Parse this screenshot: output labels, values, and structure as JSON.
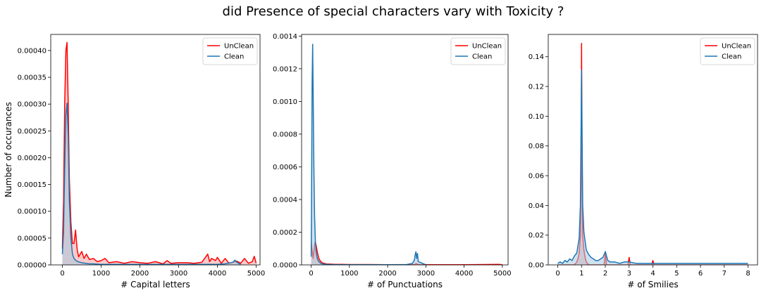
{
  "suptitle": "did Presence of special characters vary with Toxicity ?",
  "colors": {
    "unclean": "#ff0000",
    "unclean_fill": "#f4a0a0",
    "clean": "#1f77b4",
    "clean_fill": "#a8c8e0"
  },
  "chart_data": [
    {
      "type": "area",
      "xlabel": "# Capital letters",
      "ylabel": "Number of occurances",
      "xlim": [
        -300,
        5100
      ],
      "ylim": [
        0,
        0.00043
      ],
      "xticks": [
        0,
        1000,
        2000,
        3000,
        4000,
        5000
      ],
      "xtick_labels": [
        "0",
        "1000",
        "2000",
        "3000",
        "4000",
        "5000"
      ],
      "yticks": [
        0,
        5e-05,
        0.0001,
        0.00015,
        0.0002,
        0.00025,
        0.0003,
        0.00035,
        0.0004
      ],
      "ytick_labels": [
        "0.00000",
        "0.00005",
        "0.00010",
        "0.00015",
        "0.00020",
        "0.00025",
        "0.00030",
        "0.00035",
        "0.00040"
      ],
      "legend": "top-right",
      "series": [
        {
          "name": "UnClean",
          "color": "#ff0000",
          "x": [
            0,
            30,
            60,
            90,
            120,
            150,
            180,
            220,
            260,
            300,
            340,
            380,
            420,
            460,
            500,
            560,
            620,
            700,
            800,
            900,
            1000,
            1100,
            1200,
            1400,
            1600,
            1800,
            2000,
            2200,
            2400,
            2600,
            2700,
            2800,
            3000,
            3200,
            3400,
            3600,
            3750,
            3800,
            3850,
            3950,
            4000,
            4100,
            4200,
            4300,
            4400,
            4500,
            4600,
            4700,
            4800,
            4900,
            4950,
            5000
          ],
          "y": [
            3e-05,
            0.00012,
            0.0003,
            0.0004,
            0.000415,
            0.0003,
            0.00016,
            8e-05,
            4e-05,
            4e-05,
            6.5e-05,
            3e-05,
            1.5e-05,
            2e-05,
            2.5e-05,
            1.2e-05,
            2e-05,
            1e-05,
            1.2e-05,
            6e-06,
            8e-06,
            1.2e-05,
            4e-06,
            6e-06,
            3e-06,
            6e-06,
            4e-06,
            3e-06,
            6e-06,
            2e-06,
            8e-06,
            3e-06,
            4e-06,
            4e-06,
            3e-06,
            5e-06,
            2e-05,
            6e-06,
            1.2e-05,
            8e-06,
            1.4e-05,
            3e-06,
            1.2e-05,
            3e-06,
            5e-06,
            7e-06,
            3e-06,
            1.2e-05,
            3e-06,
            6e-06,
            1.6e-05,
            3e-06
          ]
        },
        {
          "name": "Clean",
          "color": "#1f77b4",
          "x": [
            0,
            30,
            60,
            90,
            120,
            150,
            180,
            220,
            260,
            300,
            350,
            400,
            450,
            500,
            600,
            700,
            800,
            1000,
            1500,
            2000,
            2500,
            3000,
            3500,
            4000,
            4200,
            4400,
            4450,
            4500,
            4600
          ],
          "y": [
            2e-05,
            6e-05,
            0.00018,
            0.00028,
            0.000302,
            0.00024,
            0.00012,
            5e-05,
            2e-05,
            1.2e-05,
            8e-06,
            6e-06,
            5e-06,
            4e-06,
            3e-06,
            2e-06,
            2e-06,
            1e-06,
            1e-06,
            1e-06,
            1e-06,
            1e-06,
            1e-06,
            1e-06,
            2e-06,
            5e-06,
            9e-06,
            5e-06,
            1e-06
          ]
        }
      ]
    },
    {
      "type": "area",
      "xlabel": "# of Punctuations",
      "xlim": [
        -250,
        5150
      ],
      "ylim": [
        0,
        0.00141
      ],
      "xticks": [
        0,
        1000,
        2000,
        3000,
        4000,
        5000
      ],
      "xtick_labels": [
        "0",
        "1000",
        "2000",
        "3000",
        "4000",
        "5000"
      ],
      "yticks": [
        0,
        0.0002,
        0.0004,
        0.0006,
        0.0008,
        0.001,
        0.0012,
        0.0014
      ],
      "ytick_labels": [
        "0.0000",
        "0.0002",
        "0.0004",
        "0.0006",
        "0.0008",
        "0.0010",
        "0.0012",
        "0.0014"
      ],
      "legend": "top-right",
      "series": [
        {
          "name": "UnClean",
          "color": "#ff0000",
          "x": [
            0,
            20,
            50,
            80,
            100,
            130,
            160,
            200,
            250,
            300,
            400,
            600,
            800,
            1000,
            1500,
            2000,
            2500,
            2700,
            2750,
            2800,
            3000,
            3500,
            4000,
            4500,
            4900,
            5000
          ],
          "y": [
            0.00015,
            0.0001,
            4e-05,
            0.0001,
            0.00014,
            0.00012,
            8e-05,
            4e-05,
            2e-05,
            1.2e-05,
            6e-06,
            4e-06,
            3e-06,
            2e-06,
            2e-06,
            1e-06,
            1e-06,
            2e-06,
            8e-06,
            2e-06,
            1e-06,
            1e-06,
            1e-06,
            2e-06,
            3e-06,
            1e-06
          ]
        },
        {
          "name": "Clean",
          "color": "#1f77b4",
          "x": [
            0,
            10,
            25,
            40,
            55,
            70,
            90,
            110,
            130,
            160,
            200,
            250,
            300,
            400,
            500,
            700,
            1000,
            1500,
            2000,
            2500,
            2650,
            2700,
            2720,
            2740,
            2760,
            2780,
            2800,
            3000
          ],
          "y": [
            5e-05,
            0.0004,
            0.0011,
            0.00135,
            0.001,
            0.0006,
            0.0003,
            0.00015,
            8e-05,
            4e-05,
            2e-05,
            1e-05,
            6e-06,
            3e-06,
            2e-06,
            1e-06,
            1e-06,
            1e-06,
            1e-06,
            2e-06,
            1e-05,
            3e-05,
            6e-05,
            8e-05,
            4e-05,
            7e-05,
            2e-05,
            1e-06
          ]
        }
      ]
    },
    {
      "type": "area",
      "xlabel": "# of Smilies",
      "xlim": [
        -0.4,
        8.4
      ],
      "ylim": [
        0,
        0.155
      ],
      "xticks": [
        0,
        1,
        2,
        3,
        4,
        5,
        6,
        7,
        8
      ],
      "xtick_labels": [
        "0",
        "1",
        "2",
        "3",
        "4",
        "5",
        "6",
        "7",
        "8"
      ],
      "yticks": [
        0,
        0.02,
        0.04,
        0.06,
        0.08,
        0.1,
        0.12,
        0.14
      ],
      "ytick_labels": [
        "0.00",
        "0.02",
        "0.04",
        "0.06",
        "0.08",
        "0.10",
        "0.12",
        "0.14"
      ],
      "legend": "top-right",
      "series": [
        {
          "name": "UnClean",
          "color": "#ff0000",
          "x": [
            0,
            0.7,
            0.8,
            0.85,
            0.9,
            0.95,
            0.98,
            1.0,
            1.02,
            1.05,
            1.1,
            1.15,
            1.2,
            1.3,
            1.95,
            2.0,
            2.05,
            2.95,
            3.0,
            3.05,
            3.95,
            4.0,
            4.05,
            8.0
          ],
          "y": [
            0,
            0,
            0.002,
            0.004,
            0.008,
            0.02,
            0.06,
            0.149,
            0.06,
            0.02,
            0.01,
            0.005,
            0.002,
            0,
            0,
            0.008,
            0,
            0,
            0.005,
            0,
            0,
            0.003,
            0,
            0
          ]
        },
        {
          "name": "Clean",
          "color": "#1f77b4",
          "x": [
            0,
            0.1,
            0.2,
            0.3,
            0.4,
            0.5,
            0.6,
            0.7,
            0.8,
            0.9,
            0.95,
            1.0,
            1.05,
            1.1,
            1.2,
            1.3,
            1.4,
            1.5,
            1.6,
            1.7,
            1.8,
            1.9,
            2.0,
            2.1,
            2.2,
            2.4,
            2.6,
            2.8,
            3.0,
            3.3,
            3.6,
            4.0,
            4.5,
            5.0,
            6.0,
            7.0,
            8.0
          ],
          "y": [
            0.001,
            0.002,
            0.001,
            0.003,
            0.002,
            0.004,
            0.003,
            0.006,
            0.008,
            0.018,
            0.04,
            0.131,
            0.04,
            0.022,
            0.01,
            0.007,
            0.005,
            0.004,
            0.003,
            0.003,
            0.004,
            0.005,
            0.009,
            0.003,
            0.002,
            0.002,
            0.001,
            0.002,
            0.002,
            0.001,
            0.001,
            0.001,
            0.001,
            0.001,
            0.001,
            0.001,
            0.001
          ]
        }
      ]
    }
  ]
}
